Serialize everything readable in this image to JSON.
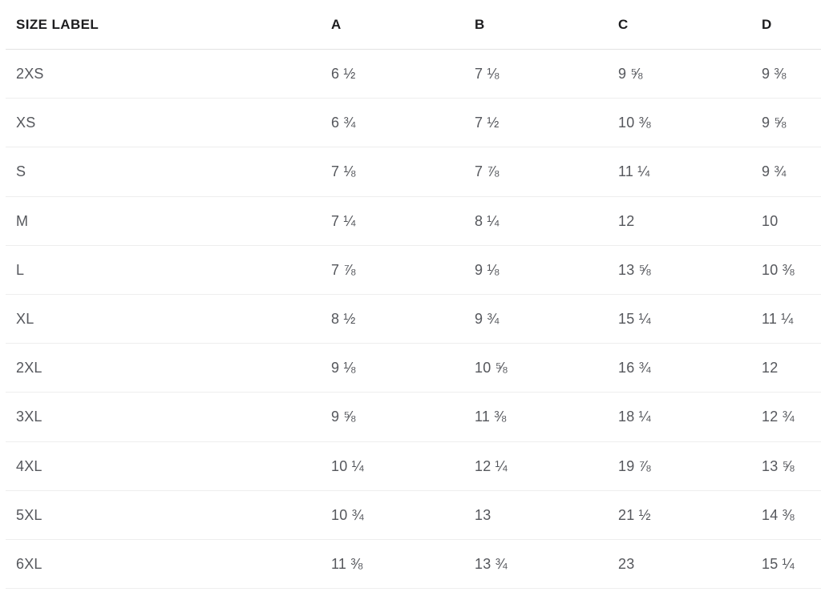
{
  "table": {
    "columns": [
      "SIZE LABEL",
      "A",
      "B",
      "C",
      "D"
    ],
    "rows": [
      {
        "label": "2XS",
        "values": [
          "6 ½",
          "7 ⅛",
          "9 ⅝",
          "9 ⅜"
        ]
      },
      {
        "label": "XS",
        "values": [
          "6 ¾",
          "7 ½",
          "10 ⅜",
          "9 ⅝"
        ]
      },
      {
        "label": "S",
        "values": [
          "7 ⅛",
          "7 ⅞",
          "11 ¼",
          "9 ¾"
        ]
      },
      {
        "label": "M",
        "values": [
          "7 ¼",
          "8 ¼",
          "12",
          "10"
        ]
      },
      {
        "label": "L",
        "values": [
          "7 ⅞",
          "9 ⅛",
          "13 ⅝",
          "10 ⅜"
        ]
      },
      {
        "label": "XL",
        "values": [
          "8 ½",
          "9 ¾",
          "15 ¼",
          "11 ¼"
        ]
      },
      {
        "label": "2XL",
        "values": [
          "9 ⅛",
          "10 ⅝",
          "16 ¾",
          "12"
        ]
      },
      {
        "label": "3XL",
        "values": [
          "9 ⅝",
          "11 ⅜",
          "18 ¼",
          "12 ¾"
        ]
      },
      {
        "label": "4XL",
        "values": [
          "10 ¼",
          "12 ¼",
          "19 ⅞",
          "13 ⅝"
        ]
      },
      {
        "label": "5XL",
        "values": [
          "10 ¾",
          "13",
          "21 ½",
          "14 ⅜"
        ]
      },
      {
        "label": "6XL",
        "values": [
          "11 ⅜",
          "13 ¾",
          "23",
          "15 ¼"
        ]
      }
    ]
  },
  "colors": {
    "background": "#ffffff",
    "header_text": "#1d1d1f",
    "cell_text": "#55575c",
    "row_divider": "#eeeeee",
    "header_divider": "#e2e2e2"
  }
}
